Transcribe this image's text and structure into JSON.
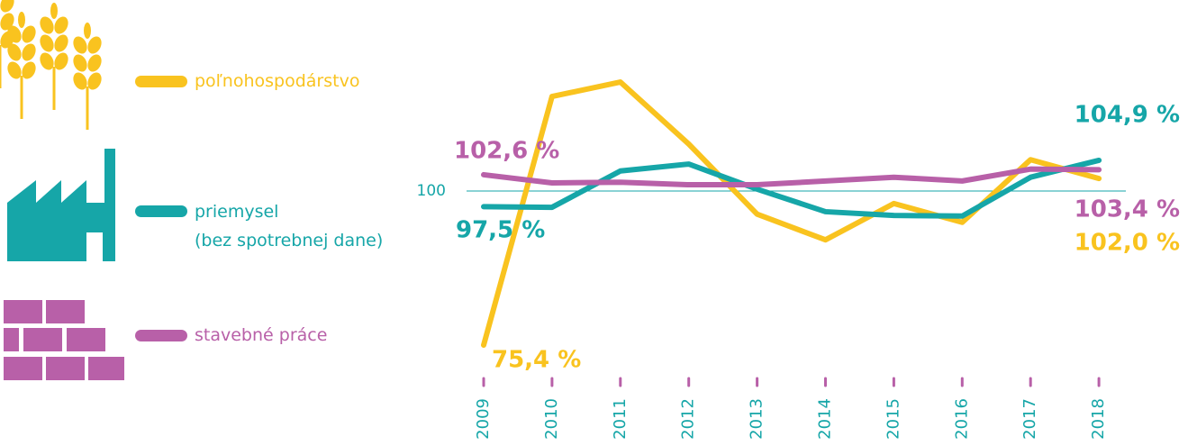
{
  "chart_data": {
    "type": "line",
    "categories": [
      "2009",
      "2010",
      "2011",
      "2012",
      "2013",
      "2014",
      "2015",
      "2016",
      "2017",
      "2018"
    ],
    "series": [
      {
        "name": "poľnohospodárstvo",
        "color": "#f9c31f",
        "values": [
          75.4,
          115.1,
          117.4,
          107.5,
          96.3,
          92.2,
          98.0,
          95.0,
          105.0,
          102.0
        ],
        "value_labels": [
          "75,4 %",
          null,
          null,
          null,
          null,
          null,
          null,
          null,
          null,
          "102,0 %"
        ]
      },
      {
        "name": "priemysel\n(bez spotrebnej dane)",
        "color": "#16a6a8",
        "values": [
          97.5,
          97.4,
          103.2,
          104.3,
          100.3,
          96.7,
          96.1,
          96.0,
          102.2,
          104.9
        ],
        "value_labels": [
          "97,5 %",
          null,
          null,
          null,
          null,
          null,
          null,
          null,
          null,
          "104,9 %"
        ]
      },
      {
        "name": "stavebné práce",
        "color": "#b860a8",
        "values": [
          102.6,
          101.3,
          101.4,
          101.0,
          101.0,
          101.6,
          102.2,
          101.6,
          103.5,
          103.4
        ],
        "value_labels": [
          "102,6 %",
          null,
          null,
          null,
          null,
          null,
          null,
          null,
          null,
          "103,4 %"
        ]
      }
    ],
    "ylim": [
      75,
      120
    ],
    "yticks": [
      100
    ]
  }
}
